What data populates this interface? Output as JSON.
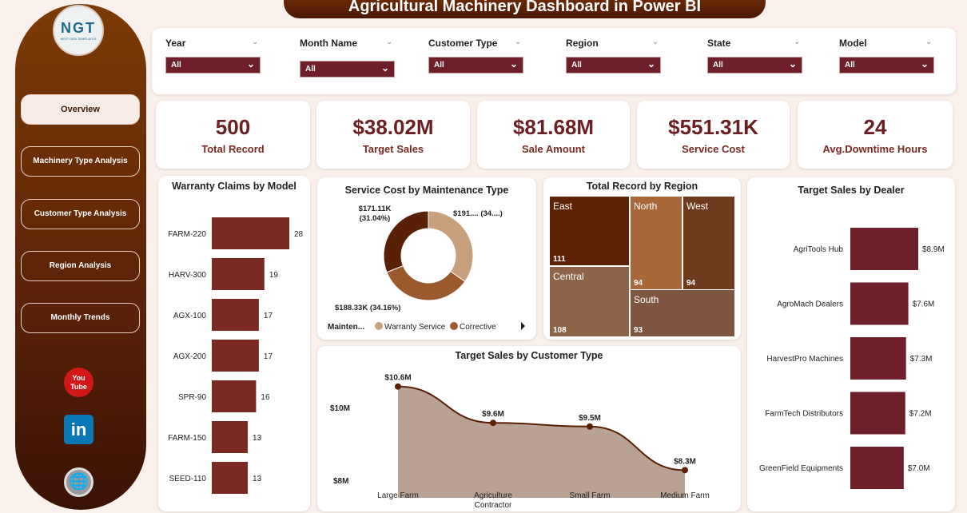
{
  "title": "Agricultural Machinery Dashboard in Power BI",
  "logo": {
    "text": "NGT",
    "sub": "NEXT GEN TEMPLATES"
  },
  "nav": [
    {
      "label": "Overview",
      "active": true
    },
    {
      "label": "Machinery Type Analysis"
    },
    {
      "label": "Customer Type Analysis"
    },
    {
      "label": "Region Analysis"
    },
    {
      "label": "Monthly Trends"
    }
  ],
  "social": {
    "youtube": "You Tube",
    "linkedin": "in"
  },
  "filters": [
    {
      "label": "Year",
      "value": "All"
    },
    {
      "label": "Month Name",
      "value": "All"
    },
    {
      "label": "Customer Type",
      "value": "All"
    },
    {
      "label": "Region",
      "value": "All"
    },
    {
      "label": "State",
      "value": "All"
    },
    {
      "label": "Model",
      "value": "All"
    }
  ],
  "kpis": [
    {
      "value": "500",
      "label": "Total Record"
    },
    {
      "value": "$38.02M",
      "label": "Target Sales"
    },
    {
      "value": "$81.68M",
      "label": "Sale Amount"
    },
    {
      "value": "$551.31K",
      "label": "Service Cost"
    },
    {
      "value": "24",
      "label": "Avg.Downtime Hours"
    }
  ],
  "colors": {
    "primary": "#6e1f2a",
    "bar": "#7b2a22",
    "accent": "#5a2005"
  },
  "chart_data": [
    {
      "type": "bar",
      "orientation": "horizontal",
      "title": "Warranty Claims by Model",
      "categories": [
        "FARM-220",
        "HARV-300",
        "AGX-100",
        "AGX-200",
        "SPR-90",
        "FARM-150",
        "SEED-110"
      ],
      "values": [
        28,
        19,
        17,
        17,
        16,
        13,
        13
      ],
      "labels": [
        "28",
        "19",
        "17",
        "17",
        "16",
        "13",
        "13"
      ]
    },
    {
      "type": "pie",
      "donut": true,
      "title": "Service Cost by Maintenance Type",
      "legend_title": "Mainten...",
      "slices": [
        {
          "name": "Warranty Service",
          "value_label": "$191.... (34....)",
          "percent": 34.8,
          "color": "#c9a07c"
        },
        {
          "name": "Corrective",
          "value_label": "$188.33K (34.16%)",
          "percent": 34.16,
          "color": "#9a5a2e"
        },
        {
          "name": "",
          "value_label": "$171.11K\n(31.04%)",
          "percent": 31.04,
          "color": "#5a2005"
        }
      ]
    },
    {
      "type": "treemap",
      "title": "Total Record by Region",
      "items": [
        {
          "name": "East",
          "value": 111,
          "color": "#5e2304"
        },
        {
          "name": "North",
          "value": 94,
          "color": "#a8683a"
        },
        {
          "name": "West",
          "value": 94,
          "color": "#6e3a1c"
        },
        {
          "name": "Central",
          "value": 108,
          "color": "#8e6448"
        },
        {
          "name": "South",
          "value": 93,
          "color": "#7e5640"
        }
      ]
    },
    {
      "type": "bar",
      "orientation": "horizontal",
      "title": "Target Sales by Dealer",
      "categories": [
        "AgriTools Hub",
        "AgroMach Dealers",
        "HarvestPro Machines",
        "FarmTech Distributors",
        "GreenField Equipments"
      ],
      "values": [
        8.9,
        7.6,
        7.3,
        7.2,
        7.0
      ],
      "labels": [
        "$8.9M",
        "$7.6M",
        "$7.3M",
        "$7.2M",
        "$7.0M"
      ],
      "unit": "$M"
    },
    {
      "type": "area",
      "title": "Target Sales by Customer Type",
      "categories": [
        "Large Farm",
        "Agriculture Contractor",
        "Small Farm",
        "Medium Farm"
      ],
      "values": [
        10.6,
        9.6,
        9.5,
        8.3
      ],
      "labels": [
        "$10.6M",
        "$9.6M",
        "$9.5M",
        "$8.3M"
      ],
      "yticks": [
        "$8M",
        "$10M"
      ],
      "ylim": [
        8,
        10.6
      ]
    }
  ]
}
